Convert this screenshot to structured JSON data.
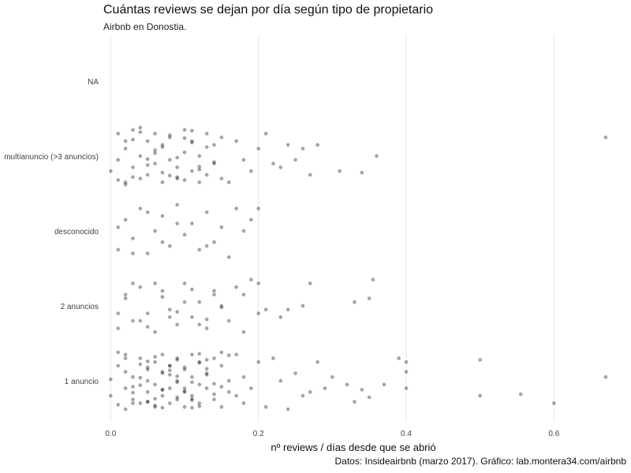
{
  "chart_data": {
    "type": "scatter",
    "title": "Cuántas reviews se dejan por día según tipo de propietario",
    "subtitle": "Airbnb en Donostia.",
    "xlabel": "nº reviews / días desde que se abrió",
    "ylabel": "",
    "caption": "Datos: Insideairbnb (marzo 2017). Gráfico: lab.montera34.com/airbnb",
    "xlim": [
      -0.01,
      0.7
    ],
    "x_ticks": [
      0.0,
      0.2,
      0.4,
      0.6
    ],
    "x_tick_labels": [
      "0.0",
      "0.2",
      "0.4",
      "0.6"
    ],
    "categories": [
      "1 anuncio",
      "2 anuncios",
      "desconocido",
      "multianuncio (>3 anuncios)",
      "NA"
    ],
    "grid": "vertical",
    "legend": "none",
    "point_color": "#000000",
    "point_alpha": 0.35,
    "jitter": "vertical jitter within each category band",
    "series": [
      {
        "name": "1 anuncio",
        "x": [
          0.01,
          0.02,
          0.02,
          0.03,
          0.03,
          0.04,
          0.04,
          0.05,
          0.05,
          0.05,
          0.06,
          0.06,
          0.06,
          0.07,
          0.07,
          0.07,
          0.08,
          0.08,
          0.08,
          0.09,
          0.09,
          0.09,
          0.1,
          0.1,
          0.1,
          0.11,
          0.11,
          0.11,
          0.12,
          0.12,
          0.12,
          0.13,
          0.13,
          0.14,
          0.14,
          0.15,
          0.15,
          0.16,
          0.16,
          0.17,
          0.17,
          0.18,
          0.18,
          0.19,
          0.2,
          0.21,
          0.22,
          0.23,
          0.24,
          0.25,
          0.26,
          0.27,
          0.28,
          0.29,
          0.3,
          0.32,
          0.33,
          0.34,
          0.35,
          0.37,
          0.39,
          0.4,
          0.4,
          0.4,
          0.5,
          0.5,
          0.555,
          0.6,
          0.67,
          0.0,
          0.01,
          0.02,
          0.03,
          0.04,
          0.05,
          0.06,
          0.07,
          0.08,
          0.09,
          0.1,
          0.11,
          0.12,
          0.13,
          0.14,
          0.15,
          0.02,
          0.04,
          0.06,
          0.08,
          0.1,
          0.12,
          0.14,
          0.16,
          0.03,
          0.05,
          0.07,
          0.09,
          0.11,
          0.13,
          0.15,
          0.01,
          0.03,
          0.05,
          0.07,
          0.09,
          0.11,
          0.13,
          0.0,
          0.02,
          0.04,
          0.06,
          0.08,
          0.1,
          0.12,
          0.05,
          0.07,
          0.09,
          0.11
        ],
        "y": [
          -0.2,
          0.1,
          -0.35,
          0.25,
          -0.05,
          0.3,
          -0.3,
          0.15,
          -0.15,
          0.0,
          0.35,
          -0.25,
          0.05,
          0.2,
          -0.1,
          -0.35,
          0.3,
          -0.2,
          0.1,
          0.25,
          -0.3,
          0.0,
          0.15,
          -0.15,
          0.35,
          -0.05,
          0.2,
          -0.35,
          0.3,
          -0.25,
          0.05,
          0.1,
          -0.1,
          0.25,
          -0.3,
          0.35,
          -0.2,
          0.0,
          0.15,
          -0.35,
          0.2,
          -0.05,
          0.3,
          0.1,
          -0.25,
          0.35,
          -0.3,
          0.0,
          0.38,
          -0.1,
          0.2,
          0.15,
          -0.25,
          0.1,
          -0.05,
          0.05,
          0.28,
          0.12,
          0.22,
          0.05,
          -0.3,
          0.1,
          -0.12,
          -0.25,
          0.2,
          -0.28,
          0.18,
          0.3,
          -0.05,
          -0.02,
          0.32,
          -0.12,
          0.08,
          -0.22,
          0.28,
          -0.32,
          0.12,
          -0.08,
          0.22,
          -0.18,
          0.02,
          0.34,
          -0.28,
          0.18,
          -0.38,
          0.38,
          -0.04,
          0.24,
          -0.14,
          0.14,
          -0.24,
          0.04,
          -0.34,
          0.3,
          -0.18,
          0.12,
          -0.28,
          0.24,
          -0.08,
          0.08,
          -0.38,
          0.16,
          -0.26,
          0.36,
          -0.06,
          0.26,
          -0.16,
          0.2,
          -0.3,
          0.06,
          0.33,
          -0.2,
          0.1,
          -0.36,
          0.28,
          -0.12,
          0.02,
          0.36
        ]
      },
      {
        "name": "2 anuncios",
        "x": [
          0.01,
          0.02,
          0.03,
          0.04,
          0.05,
          0.06,
          0.07,
          0.08,
          0.09,
          0.1,
          0.11,
          0.12,
          0.13,
          0.14,
          0.15,
          0.16,
          0.17,
          0.18,
          0.19,
          0.2,
          0.21,
          0.23,
          0.24,
          0.26,
          0.27,
          0.33,
          0.35,
          0.355,
          0.02,
          0.04,
          0.06,
          0.08,
          0.1,
          0.12,
          0.14,
          0.01,
          0.03,
          0.05,
          0.07,
          0.09,
          0.11,
          0.13,
          0.15,
          0.18,
          0.2
        ],
        "y": [
          0.3,
          -0.1,
          0.2,
          -0.25,
          0.1,
          0.35,
          -0.2,
          0.05,
          0.25,
          -0.3,
          0.15,
          -0.05,
          0.3,
          -0.15,
          0.0,
          0.2,
          -0.25,
          0.35,
          -0.35,
          -0.3,
          0.05,
          0.15,
          0.05,
          0.0,
          -0.3,
          -0.05,
          -0.1,
          -0.35,
          -0.15,
          0.2,
          -0.3,
          0.15,
          -0.05,
          0.25,
          -0.2,
          0.1,
          -0.3,
          0.28,
          -0.12,
          0.08,
          -0.22,
          0.18,
          0.02,
          -0.15,
          0.1
        ]
      },
      {
        "name": "desconocido",
        "x": [
          0.01,
          0.02,
          0.03,
          0.04,
          0.05,
          0.06,
          0.07,
          0.08,
          0.09,
          0.1,
          0.11,
          0.12,
          0.13,
          0.14,
          0.15,
          0.16,
          0.17,
          0.18,
          0.19,
          0.2,
          0.01,
          0.03,
          0.05,
          0.07,
          0.09,
          0.13
        ],
        "y": [
          0.25,
          -0.15,
          0.1,
          -0.3,
          0.3,
          0.0,
          -0.2,
          0.2,
          -0.35,
          0.05,
          -0.1,
          0.25,
          -0.25,
          0.15,
          -0.05,
          0.35,
          -0.3,
          0.0,
          -0.15,
          -0.3,
          -0.05,
          0.3,
          -0.25,
          0.15,
          -0.1,
          0.2
        ]
      },
      {
        "name": "multianuncio (>3 anuncios)",
        "x": [
          0.0,
          0.01,
          0.02,
          0.02,
          0.03,
          0.03,
          0.04,
          0.04,
          0.05,
          0.05,
          0.06,
          0.06,
          0.07,
          0.07,
          0.08,
          0.08,
          0.09,
          0.09,
          0.1,
          0.1,
          0.11,
          0.11,
          0.12,
          0.12,
          0.13,
          0.13,
          0.14,
          0.14,
          0.15,
          0.15,
          0.16,
          0.17,
          0.18,
          0.19,
          0.2,
          0.21,
          0.22,
          0.23,
          0.24,
          0.25,
          0.26,
          0.27,
          0.28,
          0.31,
          0.34,
          0.36,
          0.67,
          0.01,
          0.02,
          0.03,
          0.04,
          0.05,
          0.06,
          0.07,
          0.08,
          0.09,
          0.1,
          0.11,
          0.12,
          0.13,
          0.14,
          0.02,
          0.04,
          0.06,
          0.08,
          0.1,
          0.12,
          0.01,
          0.03,
          0.05,
          0.07,
          0.09,
          0.11
        ],
        "y": [
          0.2,
          -0.3,
          0.35,
          -0.1,
          0.15,
          -0.35,
          0.3,
          0.0,
          -0.2,
          0.25,
          0.1,
          -0.3,
          0.35,
          -0.15,
          0.05,
          -0.25,
          0.3,
          0.15,
          -0.05,
          -0.35,
          0.2,
          -0.2,
          0.35,
          0.0,
          -0.3,
          0.25,
          0.1,
          -0.15,
          0.3,
          -0.25,
          0.35,
          -0.2,
          0.05,
          0.2,
          -0.1,
          -0.3,
          0.1,
          0.15,
          -0.15,
          0.05,
          -0.1,
          0.25,
          -0.15,
          0.2,
          0.22,
          0.0,
          -0.25,
          0.05,
          -0.2,
          0.28,
          -0.32,
          0.12,
          -0.08,
          0.22,
          -0.28,
          0.02,
          0.32,
          -0.18,
          0.18,
          -0.12,
          0.08,
          0.38,
          -0.38,
          -0.04,
          0.26,
          -0.24,
          0.14,
          0.32,
          -0.22,
          0.04,
          -0.12,
          0.28,
          -0.34
        ]
      },
      {
        "name": "NA",
        "x": [],
        "y": []
      }
    ]
  }
}
